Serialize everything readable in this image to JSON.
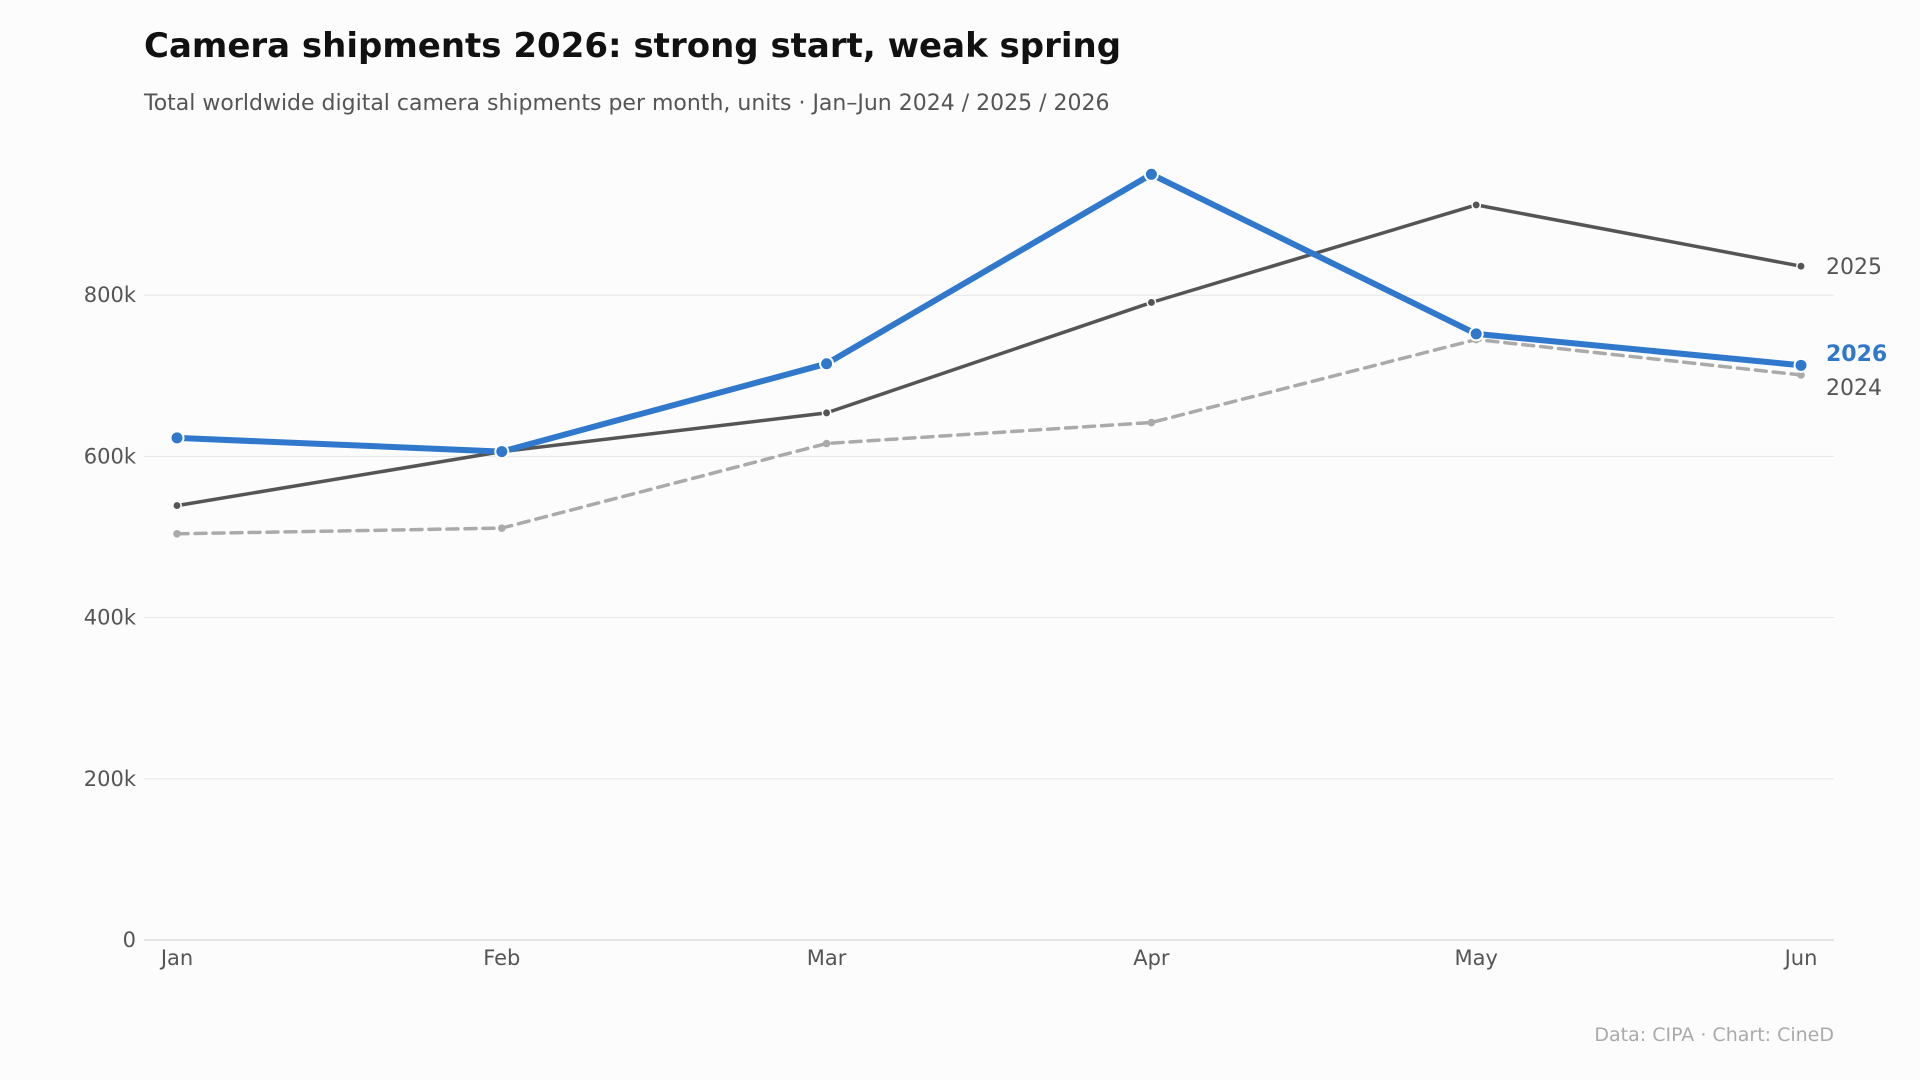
{
  "header": {
    "title": "Camera shipments 2026: strong start, weak spring",
    "subtitle": "Total worldwide digital camera shipments per month, units · Jan–Jun 2024 / 2025 / 2026"
  },
  "footer": {
    "source": "Data: CIPA  ·  Chart: CineD"
  },
  "chart_data": {
    "type": "line",
    "categories": [
      "Jan",
      "Feb",
      "Mar",
      "Apr",
      "May",
      "Jun"
    ],
    "ylim": [
      0,
      1000000
    ],
    "yticks": [
      0,
      200000,
      400000,
      600000,
      800000
    ],
    "ytick_labels": [
      "0",
      "200k",
      "400k",
      "600k",
      "800k"
    ],
    "grid": true,
    "legend": "direct labels at right end of lines",
    "series": [
      {
        "name": "2024",
        "values": [
          504000,
          511000,
          616000,
          642000,
          745000,
          701000
        ],
        "color": "#aaaaaa",
        "style": "dashed"
      },
      {
        "name": "2025",
        "values": [
          539000,
          606000,
          654000,
          791000,
          912000,
          836000
        ],
        "color": "#555555",
        "style": "solid"
      },
      {
        "name": "2026",
        "values": [
          623000,
          606000,
          715000,
          950000,
          752000,
          713000
        ],
        "color": "#2f78cc",
        "style": "bold"
      }
    ]
  }
}
